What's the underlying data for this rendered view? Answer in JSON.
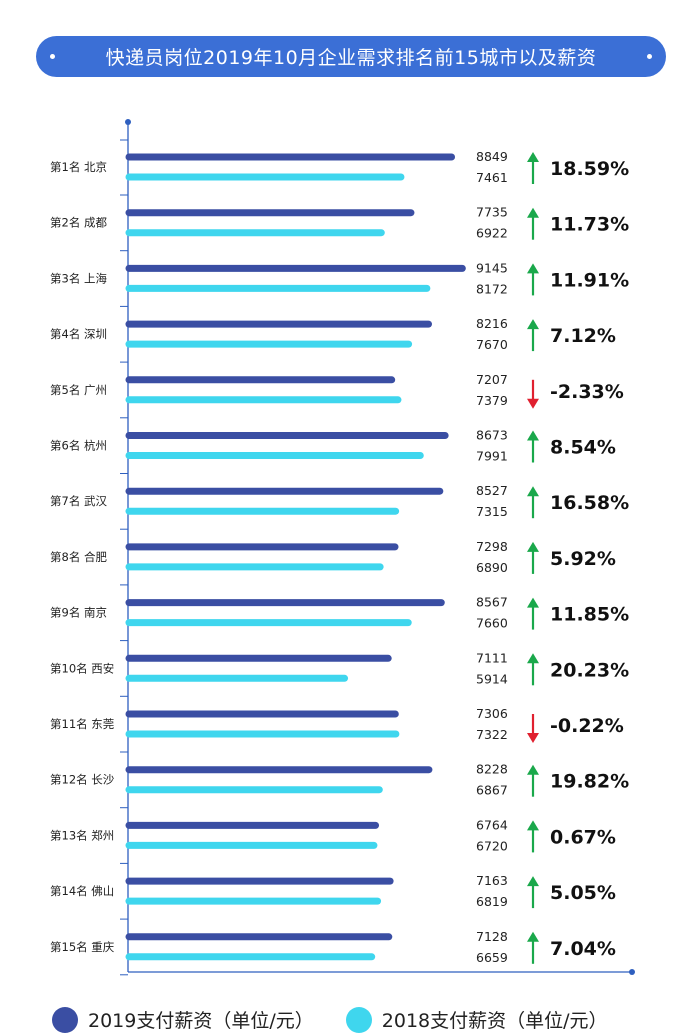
{
  "title": "快递员岗位2019年10月企业需求排名前15城市以及薪资",
  "legend": {
    "series_2019": "2019支付薪资（单位/元）",
    "series_2018": "2018支付薪资（单位/元）"
  },
  "colors": {
    "bar_2019": "#3a4ea3",
    "bar_2018": "#3fd6ee",
    "title_bg": "#3b6fd6",
    "up": "#1aa84b",
    "down": "#e0202f",
    "axis": "#2e5fbf"
  },
  "chart_data": {
    "type": "bar",
    "orientation": "horizontal",
    "categories": [
      "第1名 北京",
      "第2名 成都",
      "第3名 上海",
      "第4名 深圳",
      "第5名 广州",
      "第6名 杭州",
      "第7名 武汉",
      "第8名 合肥",
      "第9名 南京",
      "第10名 西安",
      "第11名 东莞",
      "第12名 长沙",
      "第13名 郑州",
      "第14名 佛山",
      "第15名 重庆"
    ],
    "series": [
      {
        "name": "2019支付薪资（单位/元）",
        "values": [
          8849,
          7735,
          9145,
          8216,
          7207,
          8673,
          8527,
          7298,
          8567,
          7111,
          7306,
          8228,
          6764,
          7163,
          7128
        ]
      },
      {
        "name": "2018支付薪资（单位/元）",
        "values": [
          7461,
          6922,
          8172,
          7670,
          7379,
          7991,
          7315,
          6890,
          7660,
          5914,
          7322,
          6867,
          6720,
          6819,
          6659
        ]
      }
    ],
    "changes": [
      "18.59%",
      "11.73%",
      "11.91%",
      "7.12%",
      "-2.33%",
      "8.54%",
      "16.58%",
      "5.92%",
      "11.85%",
      "20.23%",
      "-0.22%",
      "19.82%",
      "0.67%",
      "5.05%",
      "7.04%"
    ],
    "change_direction": [
      "up",
      "up",
      "up",
      "up",
      "down",
      "up",
      "up",
      "up",
      "up",
      "up",
      "down",
      "up",
      "up",
      "up",
      "up"
    ],
    "legend_position": "bottom"
  }
}
